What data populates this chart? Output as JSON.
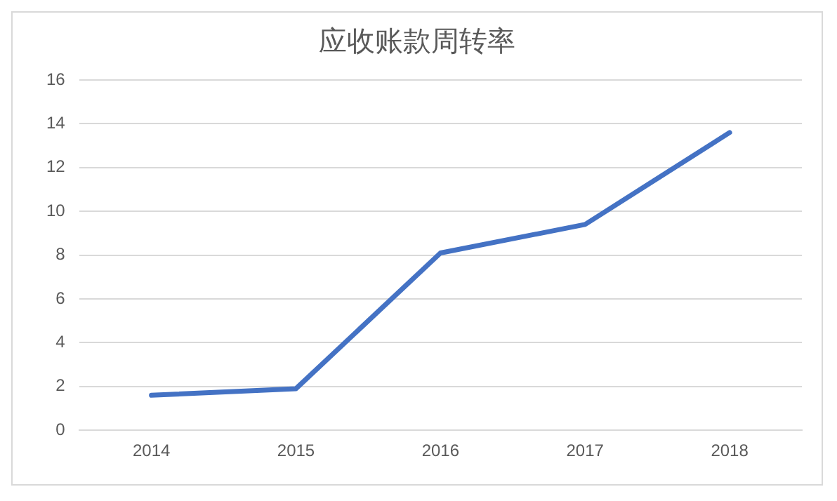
{
  "chart_data": {
    "type": "line",
    "title": "应收账款周转率",
    "categories": [
      "2014",
      "2015",
      "2016",
      "2017",
      "2018"
    ],
    "series": [
      {
        "color": "#4472c4",
        "values": [
          1.6,
          1.9,
          8.1,
          9.4,
          13.6
        ]
      }
    ],
    "ylim": [
      0,
      16
    ],
    "yticks": [
      0,
      2,
      4,
      6,
      8,
      10,
      12,
      14,
      16
    ],
    "grid": "y",
    "legend": false,
    "marker": "none",
    "line_style": "solid"
  }
}
